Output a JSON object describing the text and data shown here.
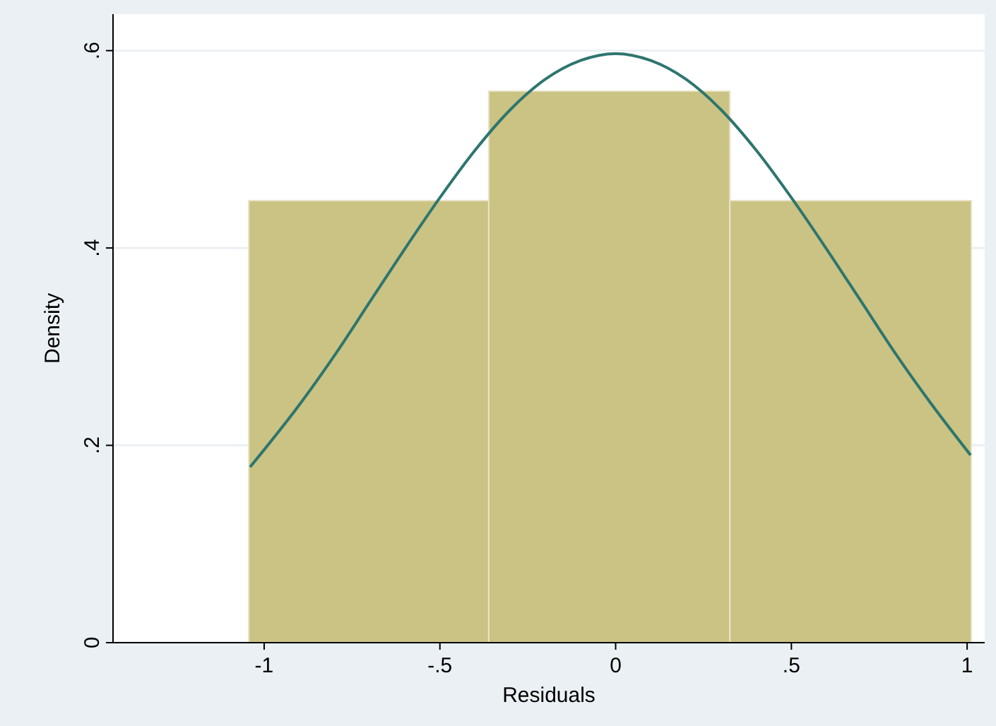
{
  "chart_data": {
    "type": "histogram",
    "xlabel": "Residuals",
    "ylabel": "Density",
    "bins": [
      -1.044,
      -0.361,
      0.325,
      1.012
    ],
    "values": [
      0.448,
      0.559,
      0.448
    ],
    "color": "#cbc383",
    "series": [
      {
        "type": "line",
        "color": "#2e766e",
        "x": [
          -1.04,
          -0.9,
          -0.8,
          -0.7,
          -0.6,
          -0.5,
          -0.4,
          -0.3,
          -0.2,
          -0.1,
          0,
          0.1,
          0.2,
          0.3,
          0.4,
          0.5,
          0.6,
          0.7,
          0.8,
          0.9,
          1.01
        ],
        "values": [
          0.178,
          0.241,
          0.291,
          0.345,
          0.399,
          0.451,
          0.499,
          0.54,
          0.571,
          0.59,
          0.597,
          0.59,
          0.571,
          0.54,
          0.499,
          0.451,
          0.399,
          0.345,
          0.291,
          0.241,
          0.19
        ]
      }
    ],
    "xlim": [
      -1.43,
      1.05
    ],
    "ylim": [
      0,
      0.637
    ],
    "xticks": [
      -1,
      {
        "value": -0.5,
        "label": "-.5"
      },
      0,
      {
        "value": 0.5,
        "label": ".5"
      },
      1
    ],
    "yticks": [
      0,
      {
        "value": 0.2,
        "label": ".2"
      },
      {
        "value": 0.4,
        "label": ".4"
      },
      {
        "value": 0.6,
        "label": ".6"
      }
    ],
    "grid": "y"
  }
}
